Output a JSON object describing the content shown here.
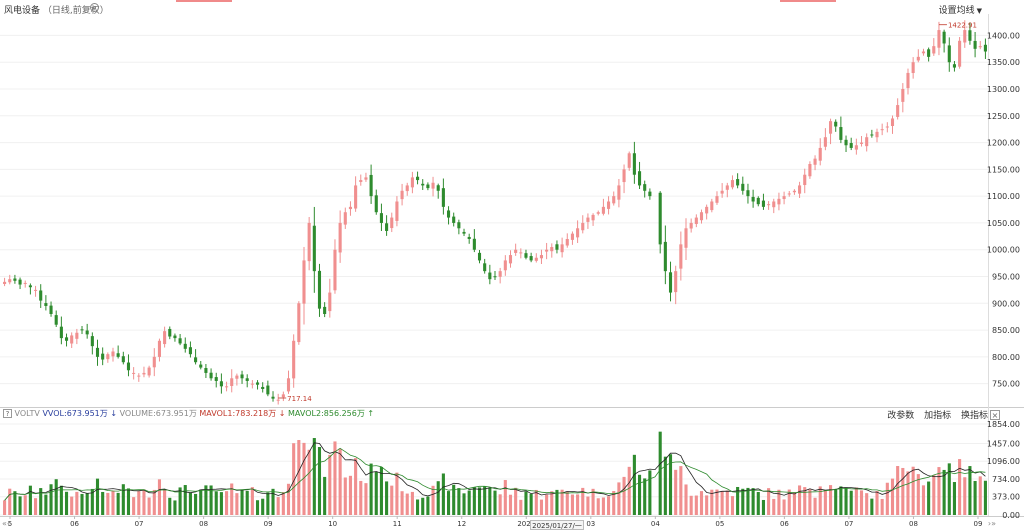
{
  "header": {
    "title": "风电设备",
    "subtitle": "（日线,前复权）",
    "ma_setting": "设置均线"
  },
  "volume_panel": {
    "help": "?",
    "vol_tv": "VOLTV",
    "vvol": "VVOL:673.951万",
    "volume": "VOLUME:673.951万",
    "mavol1": "MAVOL1:783.218万",
    "mavol2": "MAVOL2:856.256万",
    "arrow_down": "↓",
    "arrow_up": "↑",
    "btn_params": "改参数",
    "btn_add": "加指标",
    "btn_switch": "换指标",
    "btn_close": "×"
  },
  "navigation": {
    "left": "«‹",
    "right": "›»",
    "cursor_date": "2025/01/27/一"
  },
  "colors": {
    "up": "#f08f8f",
    "down": "#2e8b2e",
    "ma1": "#222222",
    "ma2": "#2e8b2e"
  },
  "chart_data": {
    "type": "candlestick",
    "price_axis": {
      "ticks": [
        "1400.00",
        "1350.00",
        "1300.00",
        "1250.00",
        "1200.00",
        "1150.00",
        "1100.00",
        "1050.00",
        "1000.00",
        "950.00",
        "900.00",
        "850.00",
        "800.00",
        "750.00"
      ],
      "range": [
        712,
        1440
      ]
    },
    "volume_axis": {
      "ticks": [
        "1854.00",
        "1457.00",
        "1096.00",
        "734.00",
        "373.00",
        "0.00"
      ],
      "range": [
        0,
        1854
      ]
    },
    "x_labels": [
      "5",
      "06",
      "07",
      "08",
      "09",
      "10",
      "11",
      "12",
      "2025",
      "03",
      "04",
      "05",
      "06",
      "07",
      "08",
      "09"
    ],
    "annotations": {
      "high": "1422.91",
      "low": "717.14"
    },
    "close": [
      940,
      945,
      942,
      935,
      938,
      930,
      925,
      905,
      895,
      880,
      860,
      835,
      830,
      840,
      845,
      850,
      842,
      820,
      800,
      795,
      805,
      810,
      800,
      790,
      775,
      770,
      765,
      770,
      780,
      800,
      830,
      848,
      838,
      835,
      825,
      815,
      805,
      790,
      780,
      770,
      760,
      755,
      745,
      745,
      760,
      765,
      760,
      755,
      750,
      748,
      740,
      730,
      722,
      720,
      730,
      760,
      830,
      900,
      980,
      1050,
      960,
      890,
      880,
      920,
      1000,
      1050,
      1070,
      1080,
      1120,
      1130,
      1135,
      1100,
      1070,
      1050,
      1035,
      1060,
      1090,
      1110,
      1120,
      1135,
      1130,
      1120,
      1115,
      1125,
      1110,
      1080,
      1060,
      1050,
      1040,
      1030,
      1020,
      1000,
      980,
      960,
      945,
      950,
      960,
      980,
      990,
      1000,
      995,
      985,
      980,
      985,
      990,
      1000,
      1005,
      1000,
      1010,
      1020,
      1030,
      1040,
      1050,
      1060,
      1065,
      1070,
      1080,
      1090,
      1100,
      1120,
      1150,
      1180,
      1140,
      1120,
      1110,
      1100,
      null,
      1010,
      960,
      920,
      960,
      1010,
      1040,
      1050,
      1060,
      1070,
      1080,
      1090,
      1100,
      1110,
      1120,
      1130,
      1120,
      1110,
      1100,
      1090,
      1085,
      1080,
      1085,
      1090,
      1095,
      1100,
      1105,
      1110,
      1120,
      1140,
      1160,
      1170,
      1190,
      1210,
      1240,
      1230,
      1205,
      1195,
      1190,
      1195,
      1200,
      1210,
      1215,
      1220,
      1225,
      1230,
      1245,
      1270,
      1300,
      1330,
      1350,
      1360,
      1370,
      1360,
      1380,
      1410,
      1385,
      1350,
      1340,
      1390,
      1410,
      1390,
      1375,
      1380,
      1370
    ]
  }
}
